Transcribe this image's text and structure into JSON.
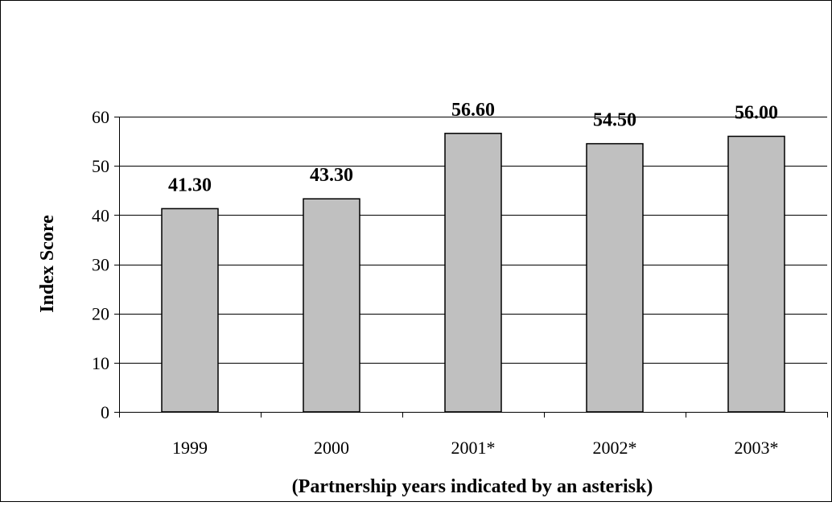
{
  "chart_data": {
    "type": "bar",
    "categories": [
      "1999",
      "2000",
      "2001*",
      "2002*",
      "2003*"
    ],
    "values": [
      41.3,
      43.3,
      56.6,
      54.5,
      56.0
    ],
    "data_labels": [
      "41.30",
      "43.30",
      "56.60",
      "54.50",
      "56.00"
    ],
    "title": "",
    "xlabel": "(Partnership years indicated by an asterisk)",
    "ylabel": "Index Score",
    "ylim": [
      0,
      60
    ],
    "yticks": [
      0,
      10,
      20,
      30,
      40,
      50,
      60
    ],
    "grid": true,
    "legend": "none",
    "colors": {
      "bar_fill": "#c0c0c0",
      "bar_stroke": "#000000",
      "grid": "#000000",
      "frame": "#000000"
    }
  }
}
